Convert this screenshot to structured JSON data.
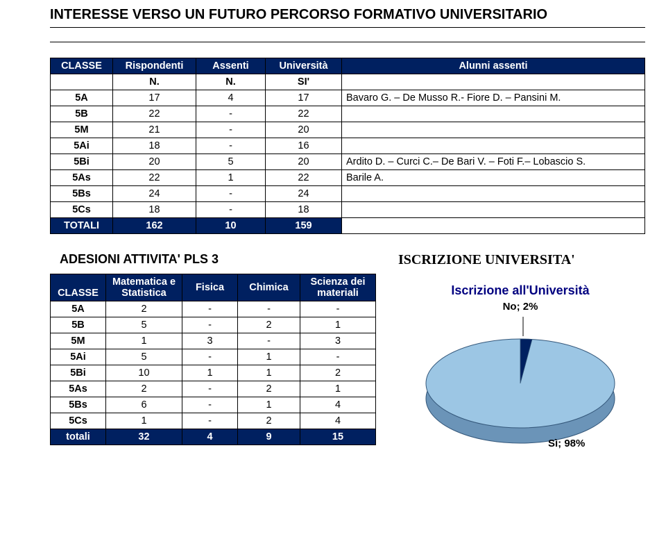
{
  "title": "INTERESSE  VERSO UN FUTURO PERCORSO FORMATIVO  UNIVERSITARIO",
  "table1": {
    "headers": {
      "c0": "CLASSE",
      "c1": "Rispondenti",
      "c2": "Assenti",
      "c3": "Università",
      "c4": "Alunni assenti"
    },
    "subheaders": {
      "c1": "N.",
      "c2": "N.",
      "c3": "SI'"
    },
    "rows": [
      {
        "classe": "5A",
        "risp": "17",
        "ass": "4",
        "uni": "17",
        "alunni": "Bavaro G. – De Musso R.- Fiore D. – Pansini M."
      },
      {
        "classe": "5B",
        "risp": "22",
        "ass": "-",
        "uni": "22",
        "alunni": ""
      },
      {
        "classe": "5M",
        "risp": "21",
        "ass": "-",
        "uni": "20",
        "alunni": ""
      },
      {
        "classe": "5Ai",
        "risp": "18",
        "ass": "-",
        "uni": "16",
        "alunni": ""
      },
      {
        "classe": "5Bi",
        "risp": "20",
        "ass": "5",
        "uni": "20",
        "alunni": "Ardito D. – Curci C.– De Bari V. – Foti F.– Lobascio S."
      },
      {
        "classe": "5As",
        "risp": "22",
        "ass": "1",
        "uni": "22",
        "alunni": "Barile A."
      },
      {
        "classe": "5Bs",
        "risp": "24",
        "ass": "-",
        "uni": "24",
        "alunni": ""
      },
      {
        "classe": "5Cs",
        "risp": "18",
        "ass": "-",
        "uni": "18",
        "alunni": ""
      }
    ],
    "totals": {
      "label": "TOTALI",
      "risp": "162",
      "ass": "10",
      "uni": "159"
    }
  },
  "adesioni_title": "ADESIONI  ATTIVITA'  PLS 3",
  "table2": {
    "headers": {
      "c0": "CLASSE",
      "c1": "Matematica e Statistica",
      "c2": "Fisica",
      "c3": "Chimica",
      "c4": "Scienza dei materiali"
    },
    "rows": [
      {
        "classe": "5A",
        "mat": "2",
        "fis": "-",
        "chi": "-",
        "sci": "-"
      },
      {
        "classe": "5B",
        "mat": "5",
        "fis": "-",
        "chi": "2",
        "sci": "1"
      },
      {
        "classe": "5M",
        "mat": "1",
        "fis": "3",
        "chi": "-",
        "sci": "3"
      },
      {
        "classe": "5Ai",
        "mat": "5",
        "fis": "-",
        "chi": "1",
        "sci": "-"
      },
      {
        "classe": "5Bi",
        "mat": "10",
        "fis": "1",
        "chi": "1",
        "sci": "2"
      },
      {
        "classe": "5As",
        "mat": "2",
        "fis": "-",
        "chi": "2",
        "sci": "1"
      },
      {
        "classe": "5Bs",
        "mat": "6",
        "fis": "-",
        "chi": "1",
        "sci": "4"
      },
      {
        "classe": "5Cs",
        "mat": "1",
        "fis": "-",
        "chi": "2",
        "sci": "4"
      }
    ],
    "totals": {
      "label": "totali",
      "mat": "32",
      "fis": "4",
      "chi": "9",
      "sci": "15"
    }
  },
  "iscrizione": {
    "section_title": "ISCRIZIONE UNIVERSITA'",
    "chart_title": "Iscrizione all'Università",
    "no_label": "No; 2%",
    "si_label": "Sì; 98%",
    "pie": {
      "type": "pie",
      "slices": [
        {
          "label": "Sì",
          "value": 98,
          "color": "#9cc6e4"
        },
        {
          "label": "No",
          "value": 2,
          "color": "#002060"
        }
      ],
      "side_color": "#6b94b8",
      "outline": "#34577a",
      "background": "#ffffff"
    }
  },
  "colors": {
    "header_blue": "#002060",
    "text_black": "#000000",
    "chart_title_color": "#000080"
  }
}
